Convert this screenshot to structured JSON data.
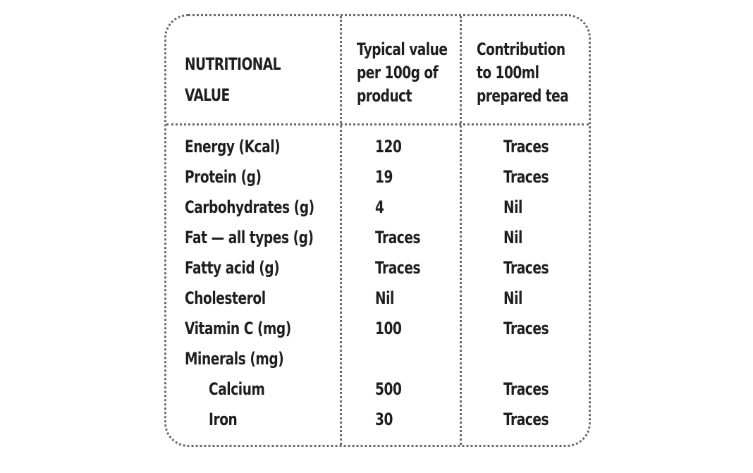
{
  "table": {
    "headers": {
      "nutrient": [
        "NUTRITIONAL",
        "VALUE"
      ],
      "per_100g": [
        "Typical value",
        "per 100g of",
        "product"
      ],
      "per_100ml": [
        "Contribution",
        "to 100ml",
        "prepared tea"
      ]
    },
    "rows": [
      {
        "name": "Energy (Kcal)",
        "per_100g": "120",
        "per_100ml": "Traces"
      },
      {
        "name": "Protein (g)",
        "per_100g": "19",
        "per_100ml": "Traces"
      },
      {
        "name": "Carbohydrates (g)",
        "per_100g": "4",
        "per_100ml": "Nil"
      },
      {
        "name": "Fat — all types (g)",
        "per_100g": "Traces",
        "per_100ml": "Nil"
      },
      {
        "name": "Fatty acid (g)",
        "per_100g": "Traces",
        "per_100ml": "Traces"
      },
      {
        "name": "Cholesterol",
        "per_100g": "Nil",
        "per_100ml": "Nil"
      },
      {
        "name": "Vitamin C (mg)",
        "per_100g": "100",
        "per_100ml": "Traces"
      },
      {
        "name": "Minerals (mg)",
        "per_100g": "",
        "per_100ml": ""
      },
      {
        "name": "Calcium",
        "per_100g": "500",
        "per_100ml": "Traces"
      },
      {
        "name": "Iron",
        "per_100g": "30",
        "per_100ml": "Traces"
      }
    ]
  }
}
